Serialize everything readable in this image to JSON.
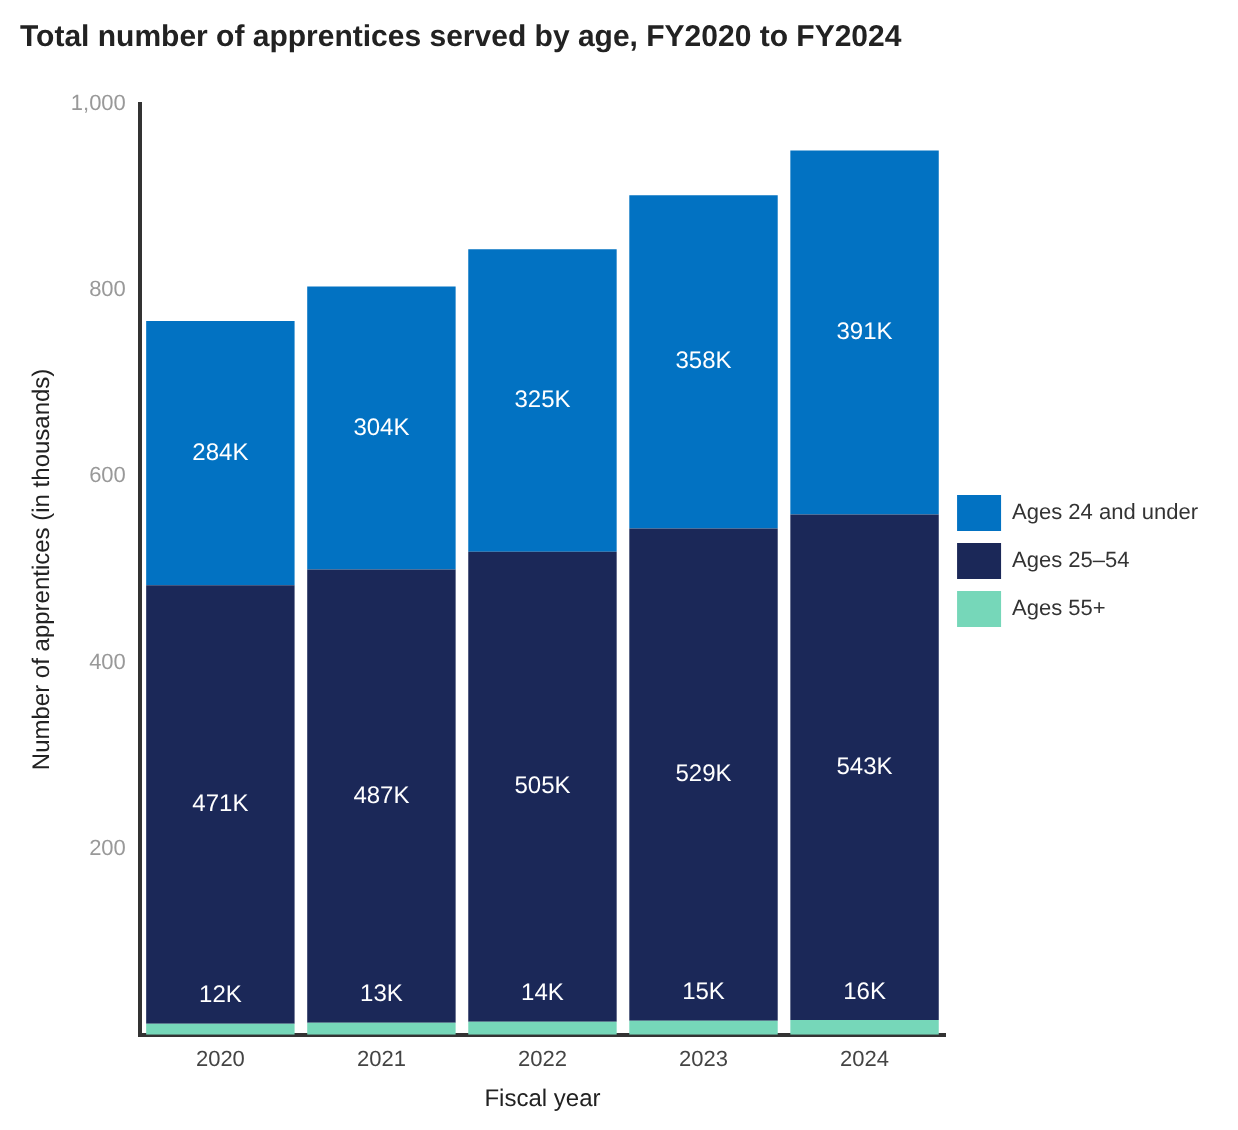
{
  "chart_data": {
    "type": "bar",
    "stacked": true,
    "title": "Total number of apprentices served by age, FY2020 to FY2024",
    "xlabel": "Fiscal year",
    "ylabel": "Number of apprentices (in thousands)",
    "categories": [
      "2020",
      "2021",
      "2022",
      "2023",
      "2024"
    ],
    "series": [
      {
        "name": "Ages 55+",
        "color": "#76d7b9",
        "values": [
          12,
          13,
          14,
          15,
          16
        ],
        "value_labels": [
          "12K",
          "13K",
          "14K",
          "15K",
          "16K"
        ]
      },
      {
        "name": "Ages 25–54",
        "color": "#1b2858",
        "values": [
          471,
          487,
          505,
          529,
          543
        ],
        "value_labels": [
          "471K",
          "487K",
          "505K",
          "529K",
          "543K"
        ]
      },
      {
        "name": "Ages 24 and under",
        "color": "#0272c2",
        "values": [
          284,
          304,
          325,
          358,
          391
        ],
        "value_labels": [
          "284K",
          "304K",
          "325K",
          "358K",
          "391K"
        ]
      }
    ],
    "ylim": [
      0,
      1000
    ],
    "yticks": [
      200,
      400,
      600,
      800,
      {
        "value": 1000,
        "label": "1,000"
      }
    ],
    "grid": false,
    "legend": "right"
  }
}
